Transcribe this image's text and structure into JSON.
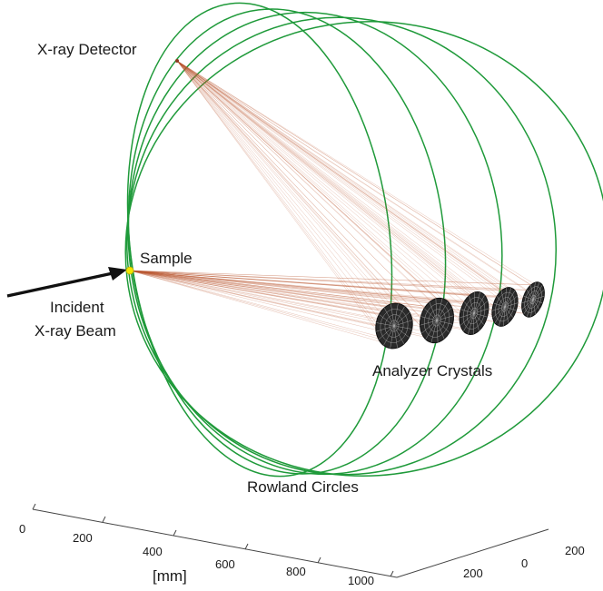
{
  "labels": {
    "detector": "X-ray Detector",
    "sample": "Sample",
    "incident_line1": "Incident",
    "incident_line2": "X-ray Beam",
    "analyzers": "Analyzer Crystals",
    "rowland": "Rowland Circles"
  },
  "axes": {
    "x_ticks": [
      "0",
      "200",
      "400",
      "600",
      "800",
      "1000"
    ],
    "x_unit": "[mm]",
    "y_ticks": [
      "200",
      "0",
      "200"
    ]
  },
  "colors": {
    "circle": "#1f9a3a",
    "ray": "#b8532e",
    "crystal_fill": "#2a2a2a",
    "crystal_mesh": "#bdbdbd",
    "sample": "#f2e600",
    "arrow": "#111111",
    "axis": "#444444"
  }
}
